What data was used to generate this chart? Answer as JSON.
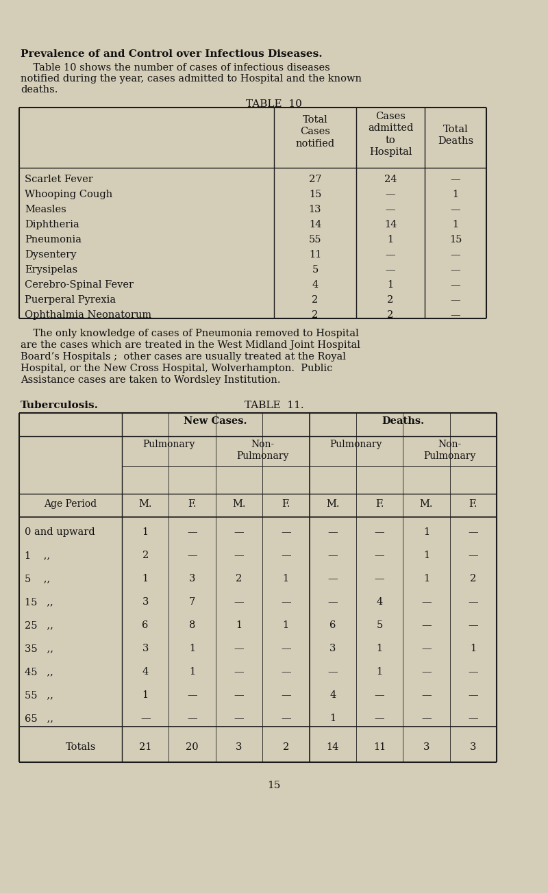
{
  "bg_color": "#d4cdb8",
  "title_bold": "Prevalence of and Control over Infectious Diseases.",
  "intro_line1": "    Table 10 shows the number of cases of infectious diseases",
  "intro_line2": "notified during the year, cases admitted to Hospital and the known",
  "intro_line3": "deaths.",
  "table10_title": "TABLE  10",
  "table10_rows": [
    [
      "Scarlet Fever",
      "27",
      "24",
      "—"
    ],
    [
      "Whooping Cough",
      "15",
      "—",
      "1"
    ],
    [
      "Measles",
      "13",
      "—",
      "—"
    ],
    [
      "Diphtheria",
      "14",
      "14",
      "1"
    ],
    [
      "Pneumonia",
      "55",
      "1",
      "15"
    ],
    [
      "Dysentery",
      "11",
      "—",
      "—"
    ],
    [
      "Erysipelas",
      "5",
      "—",
      "—"
    ],
    [
      "Cerebro-Spinal Fever",
      "4",
      "1",
      "—"
    ],
    [
      "Puerperal Pyrexia",
      "2",
      "2",
      "—"
    ],
    [
      "Ophthalmia Neonatorum",
      "2",
      "2",
      "—"
    ]
  ],
  "note_lines": [
    "    The only knowledge of cases of Pneumonia removed to Hospital",
    "are the cases which are treated in the West Midland Joint Hospital",
    "Board’s Hospitals ;  other cases are usually treated at the Royal",
    "Hospital, or the New Cross Hospital, Wolverhampton.  Public",
    "Assistance cases are taken to Wordsley Institution."
  ],
  "tuberculosis_label": "Tuberculosis.",
  "table11_title": "TABLE  11.",
  "table11_mf_headers": [
    "M.",
    "F.",
    "M.",
    "F.",
    "M.",
    "F.",
    "M.",
    "F."
  ],
  "table11_age_label": "Age Period",
  "table11_rows": [
    [
      "0 and upward",
      "1",
      "—",
      "—",
      "—",
      "—",
      "—",
      "1",
      "—"
    ],
    [
      "1    ,,",
      "2",
      "—",
      "—",
      "—",
      "—",
      "—",
      "1",
      "—"
    ],
    [
      "5    ,,",
      "1",
      "3",
      "2",
      "1",
      "—",
      "—",
      "1",
      "2"
    ],
    [
      "15   ,,",
      "3",
      "7",
      "—",
      "—",
      "—",
      "4",
      "—",
      "—"
    ],
    [
      "25   ,,",
      "6",
      "8",
      "1",
      "1",
      "6",
      "5",
      "—",
      "—"
    ],
    [
      "35   ,,",
      "3",
      "1",
      "—",
      "—",
      "3",
      "1",
      "—",
      "1"
    ],
    [
      "45   ,,",
      "4",
      "1",
      "—",
      "—",
      "—",
      "1",
      "—",
      "—"
    ],
    [
      "55   ,,",
      "1",
      "—",
      "—",
      "—",
      "4",
      "—",
      "—",
      "—"
    ],
    [
      "65   ,,",
      "—",
      "—",
      "—",
      "—",
      "1",
      "—",
      "—",
      "—"
    ]
  ],
  "table11_totals": [
    "Totals",
    "21",
    "20",
    "3",
    "2",
    "14",
    "11",
    "3",
    "3"
  ],
  "page_number": "15"
}
